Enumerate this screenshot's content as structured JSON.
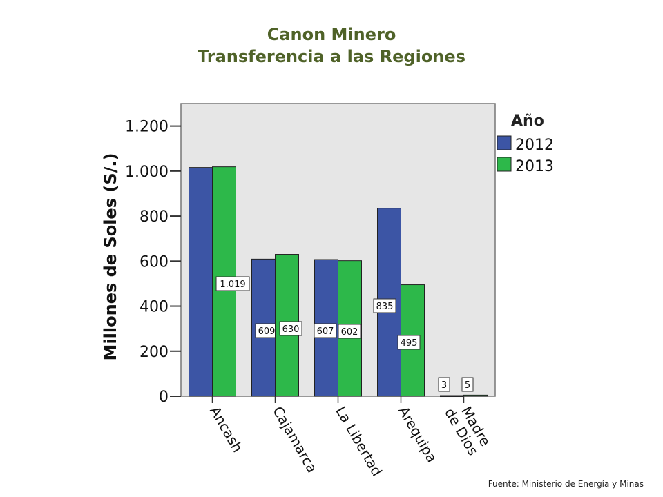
{
  "page": {
    "title_line1": "Canon Minero",
    "title_line2": "Transferencia a las Regiones",
    "source": "Fuente: Ministerio de Energía y Minas"
  },
  "chart_data": {
    "type": "bar",
    "title": "Canon Minero Transferencia a las Regiones",
    "ylabel": "Millones de Soles (S/.)",
    "xlabel": "",
    "ylim": [
      0,
      1300
    ],
    "yticks": [
      0,
      200,
      400,
      600,
      800,
      1000,
      1200
    ],
    "ytick_labels": [
      "0",
      "200",
      "400",
      "600",
      "800",
      "1.000",
      "1.200"
    ],
    "grid": false,
    "legend_title": "Año",
    "legend_position": "right",
    "categories": [
      "Ancash",
      "Cajamarca",
      "La Libertad",
      "Arequipa",
      "Madre de Dios"
    ],
    "series": [
      {
        "name": "2012",
        "color": "#3c55a5",
        "values": [
          1016,
          609,
          607,
          835,
          3
        ],
        "data_labels": [
          "",
          "609",
          "607",
          "835",
          "3"
        ]
      },
      {
        "name": "2013",
        "color": "#2db84a",
        "values": [
          1019,
          630,
          602,
          495,
          5
        ],
        "data_labels": [
          "1.019",
          "630",
          "602",
          "495",
          "5"
        ]
      }
    ],
    "plot_background": "#e6e6e6"
  }
}
